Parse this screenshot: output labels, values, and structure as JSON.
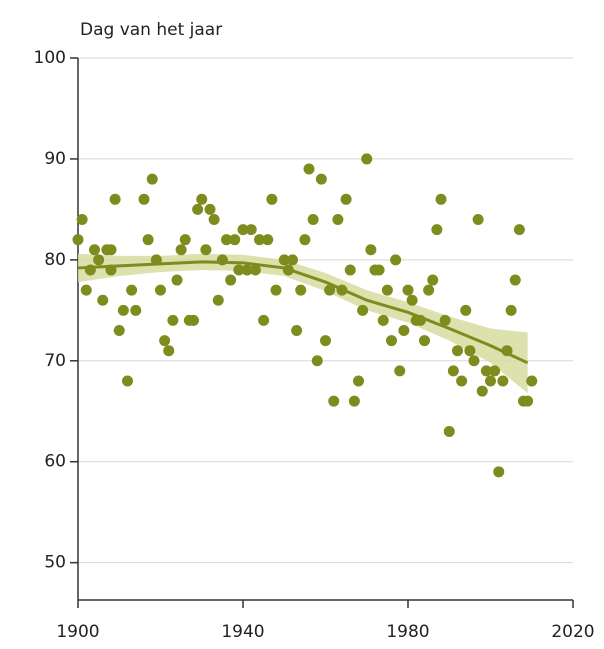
{
  "chart_data": {
    "type": "scatter",
    "y_label": "Dag van het jaar",
    "x": [
      1900,
      1901,
      1902,
      1903,
      1904,
      1905,
      1906,
      1907,
      1908,
      1908,
      1909,
      1910,
      1911,
      1912,
      1913,
      1914,
      1916,
      1917,
      1918,
      1919,
      1920,
      1921,
      1922,
      1923,
      1924,
      1925,
      1926,
      1927,
      1928,
      1929,
      1930,
      1931,
      1932,
      1933,
      1934,
      1935,
      1936,
      1937,
      1938,
      1939,
      1940,
      1941,
      1942,
      1943,
      1944,
      1945,
      1946,
      1947,
      1948,
      1950,
      1951,
      1952,
      1953,
      1954,
      1955,
      1956,
      1957,
      1958,
      1959,
      1960,
      1961,
      1962,
      1963,
      1964,
      1965,
      1966,
      1967,
      1968,
      1969,
      1970,
      1971,
      1972,
      1973,
      1974,
      1975,
      1976,
      1977,
      1978,
      1979,
      1980,
      1981,
      1982,
      1983,
      1984,
      1985,
      1986,
      1987,
      1988,
      1989,
      1990,
      1991,
      1992,
      1993,
      1994,
      1995,
      1996,
      1997,
      1998,
      1999,
      2000,
      2001,
      2002,
      2003,
      2004,
      2005,
      2006,
      2007,
      2008,
      2009,
      2010
    ],
    "values": [
      82,
      84,
      77,
      79,
      81,
      80,
      76,
      81,
      79,
      81,
      86,
      73,
      75,
      68,
      77,
      75,
      86,
      82,
      88,
      80,
      77,
      72,
      71,
      74,
      78,
      81,
      82,
      74,
      74,
      85,
      86,
      81,
      85,
      84,
      76,
      80,
      82,
      78,
      82,
      79,
      83,
      79,
      83,
      79,
      82,
      74,
      82,
      86,
      77,
      80,
      79,
      80,
      73,
      77,
      82,
      89,
      84,
      70,
      88,
      72,
      77,
      66,
      84,
      77,
      86,
      79,
      66,
      68,
      75,
      90,
      81,
      79,
      79,
      74,
      77,
      72,
      80,
      69,
      73,
      77,
      76,
      74,
      74,
      72,
      77,
      78,
      83,
      86,
      74,
      63,
      69,
      71,
      68,
      75,
      71,
      70,
      84,
      67,
      69,
      68,
      69,
      59,
      68,
      71,
      75,
      78,
      83,
      66,
      66,
      68
    ],
    "color": "#7d8c1d",
    "trend": {
      "x": [
        1900,
        1910,
        1920,
        1930,
        1940,
        1950,
        1960,
        1970,
        1980,
        1990,
        2000,
        2009
      ],
      "values": [
        79.2,
        79.4,
        79.6,
        79.8,
        79.7,
        79.2,
        77.8,
        76.0,
        74.8,
        73.2,
        71.5,
        69.8
      ],
      "lower": [
        77.8,
        78.4,
        78.8,
        79.0,
        78.9,
        78.4,
        76.9,
        75.0,
        73.8,
        72.0,
        69.8,
        66.8
      ],
      "upper": [
        80.6,
        80.4,
        80.4,
        80.6,
        80.5,
        80.0,
        78.7,
        77.0,
        75.8,
        74.4,
        73.2,
        72.8
      ],
      "color": "#7d8c1d",
      "band_color": "#d6dca0"
    },
    "xlim": [
      1900,
      2020
    ],
    "xticks": [
      1900,
      1940,
      1980,
      2020
    ],
    "ylim": [
      46.3,
      100
    ],
    "yticks": [
      50,
      60,
      70,
      80,
      90,
      100
    ],
    "grid": true
  }
}
